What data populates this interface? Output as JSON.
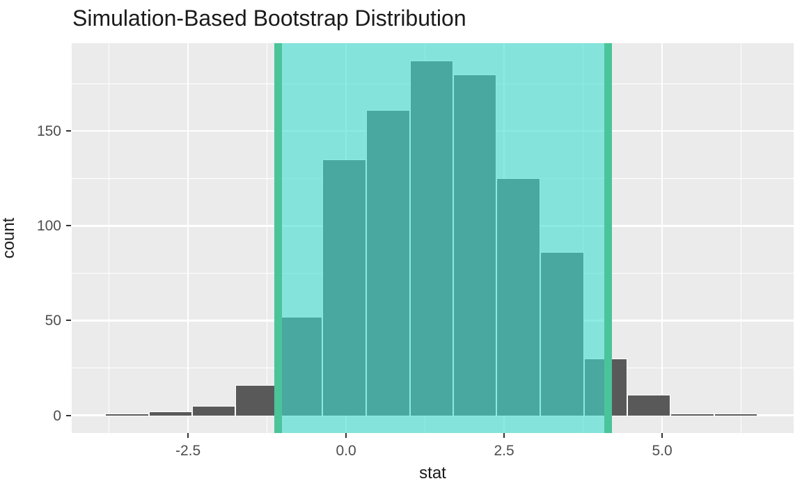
{
  "title": "Simulation-Based Bootstrap Distribution",
  "x_axis": {
    "label": "stat",
    "tick_labels": [
      "-2.5",
      "0.0",
      "2.5",
      "5.0"
    ],
    "tick_values": [
      -2.5,
      0.0,
      2.5,
      5.0
    ],
    "minor_values": [
      -3.75,
      -1.25,
      1.25,
      3.75,
      6.25
    ],
    "range": [
      -4.34,
      7.08
    ]
  },
  "y_axis": {
    "label": "count",
    "tick_labels": [
      "0",
      "50",
      "100",
      "150"
    ],
    "tick_values": [
      0,
      50,
      100,
      150
    ],
    "minor_values": [
      25,
      75,
      125,
      175
    ],
    "range": [
      -9.35,
      196.35
    ]
  },
  "chart_data": {
    "type": "bar",
    "subtype": "histogram",
    "title": "Simulation-Based Bootstrap Distribution",
    "xlabel": "stat",
    "ylabel": "count",
    "bin_width": 0.688,
    "bin_edges": [
      -3.81,
      -3.12,
      -2.43,
      -1.75,
      -1.06,
      -0.37,
      0.32,
      1.01,
      1.69,
      2.38,
      3.07,
      3.76,
      4.45,
      5.13,
      5.82,
      6.51
    ],
    "counts": [
      1,
      2,
      5,
      16,
      52,
      135,
      161,
      187,
      180,
      125,
      86,
      30,
      11,
      1,
      1
    ],
    "confidence_interval": {
      "lower": -1.08,
      "upper": 4.15
    },
    "xlim": [
      -4.34,
      7.08
    ],
    "ylim": [
      -9.35,
      196.35
    ],
    "grid": true,
    "legend": false
  },
  "colors": {
    "figure_bg": "#FFFFFF",
    "panel_bg": "#EBEBEB",
    "grid_major": "#FFFFFF",
    "grid_minor": "#FFFFFF",
    "bar_fill": "#595959",
    "bar_border": "#FFFFFF",
    "shade_fill": "rgba(64,224,208,0.6)",
    "ci_line": "#4BC49A",
    "tick_mark": "#333333",
    "tick_label": "#4D4D4D",
    "text": "#1A1A1A"
  }
}
